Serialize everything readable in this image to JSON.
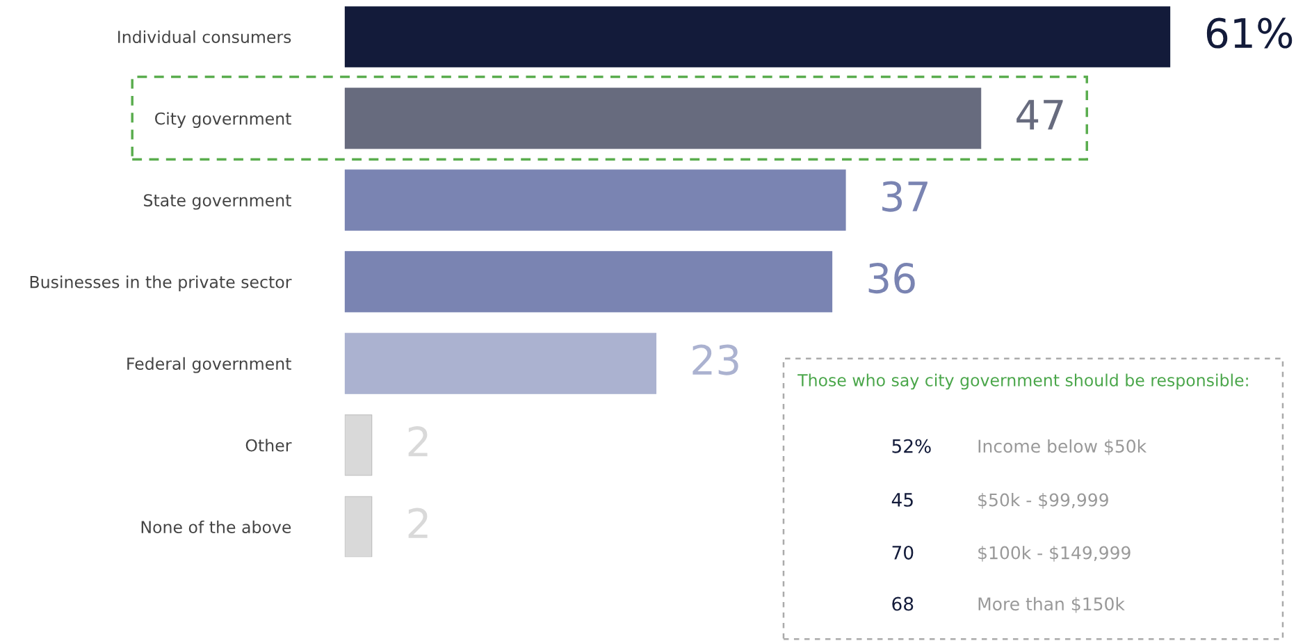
{
  "chart_data": {
    "type": "bar",
    "orientation": "horizontal",
    "categories": [
      "Individual consumers",
      "City government",
      "State government",
      "Businesses in the private sector",
      "Federal government",
      "Other",
      "None of the above"
    ],
    "values": [
      61,
      47,
      37,
      36,
      23,
      2,
      2
    ],
    "colors": [
      "#131b3a",
      "#676b7e",
      "#7a84b2",
      "#7a84b2",
      "#abb2d0",
      "#d9d9d9",
      "#d9d9d9"
    ],
    "value_labels": [
      "61%",
      "47",
      "37",
      "36",
      "23",
      "2",
      "2"
    ],
    "xlim": [
      0,
      61
    ],
    "annotations": [
      "Those who say city government should be responsible:",
      "52%",
      "Income below $50k",
      "45",
      "$50k - $99,999",
      "70",
      "$100k - $149,999",
      "68",
      "More than $150k"
    ]
  }
}
